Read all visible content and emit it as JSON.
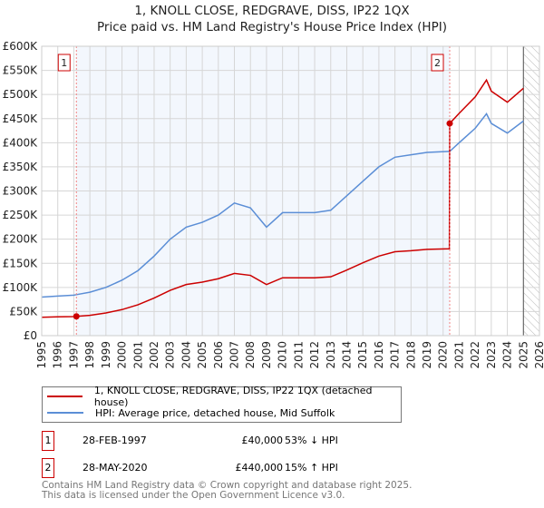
{
  "chart_data": {
    "type": "line",
    "title": "1, KNOLL CLOSE, REDGRAVE, DISS, IP22 1QX",
    "subtitle": "Price paid vs. HM Land Registry's House Price Index (HPI)",
    "xlim": [
      1995,
      2026
    ],
    "ylim": [
      0,
      600000
    ],
    "x_ticks": [
      "1995",
      "1996",
      "1997",
      "1998",
      "1999",
      "2000",
      "2001",
      "2002",
      "2003",
      "2004",
      "2005",
      "2006",
      "2007",
      "2008",
      "2009",
      "2010",
      "2011",
      "2012",
      "2013",
      "2014",
      "2015",
      "2016",
      "2017",
      "2018",
      "2019",
      "2020",
      "2021",
      "2022",
      "2023",
      "2024",
      "2025",
      "2026"
    ],
    "y_ticks": [
      {
        "v": 0,
        "label": "£0"
      },
      {
        "v": 50000,
        "label": "£50K"
      },
      {
        "v": 100000,
        "label": "£100K"
      },
      {
        "v": 150000,
        "label": "£150K"
      },
      {
        "v": 200000,
        "label": "£200K"
      },
      {
        "v": 250000,
        "label": "£250K"
      },
      {
        "v": 300000,
        "label": "£300K"
      },
      {
        "v": 350000,
        "label": "£350K"
      },
      {
        "v": 400000,
        "label": "£400K"
      },
      {
        "v": 450000,
        "label": "£450K"
      },
      {
        "v": 500000,
        "label": "£500K"
      },
      {
        "v": 550000,
        "label": "£550K"
      },
      {
        "v": 600000,
        "label": "£600K"
      }
    ],
    "grid": true,
    "shaded_region": [
      1997.16,
      2020.41
    ],
    "forecast_hatch_from": 2025.0,
    "series": [
      {
        "name": "1, KNOLL CLOSE, REDGRAVE, DISS, IP22 1QX (detached house)",
        "color": "#cc0000",
        "x": [
          1995,
          1996,
          1997,
          1997.16,
          1998,
          1999,
          2000,
          2001,
          2002,
          2003,
          2004,
          2005,
          2006,
          2007,
          2008,
          2009,
          2010,
          2011,
          2012,
          2013,
          2014,
          2015,
          2016,
          2017,
          2018,
          2019,
          2020.39,
          2020.41,
          2021,
          2022,
          2022.7,
          2023,
          2024,
          2025
        ],
        "y": [
          38000,
          39000,
          39500,
          40000,
          42000,
          47000,
          54000,
          64000,
          78000,
          94000,
          106000,
          111000,
          118000,
          129000,
          125000,
          106000,
          120000,
          120000,
          120000,
          122000,
          136000,
          151000,
          165000,
          174000,
          176000,
          179000,
          180000,
          440000,
          461000,
          495000,
          530000,
          507000,
          484000,
          513000
        ]
      },
      {
        "name": "HPI: Average price, detached house, Mid Suffolk",
        "color": "#5b8ed6",
        "x": [
          1995,
          1996,
          1997,
          1997.16,
          1998,
          1999,
          2000,
          2001,
          2002,
          2003,
          2004,
          2005,
          2006,
          2007,
          2008,
          2009,
          2010,
          2011,
          2012,
          2013,
          2014,
          2015,
          2016,
          2017,
          2018,
          2019,
          2020.39,
          2020.41,
          2021,
          2022,
          2022.7,
          2023,
          2024,
          2025
        ],
        "y": [
          80000,
          82000,
          84000,
          85000,
          90000,
          100000,
          115000,
          135000,
          165000,
          200000,
          225000,
          235000,
          250000,
          275000,
          265000,
          225000,
          255000,
          255000,
          255000,
          260000,
          290000,
          320000,
          350000,
          370000,
          375000,
          380000,
          382000,
          382000,
          400000,
          430000,
          460000,
          440000,
          420000,
          445000
        ]
      }
    ],
    "sales": [
      {
        "id": "1",
        "x": 1997.16,
        "y": 40000,
        "date": "28-FEB-1997",
        "price": "£40,000",
        "hpi": "53% ↓ HPI"
      },
      {
        "id": "2",
        "x": 2020.41,
        "y": 440000,
        "date": "28-MAY-2020",
        "price": "£440,000",
        "hpi": "15% ↑ HPI"
      }
    ]
  },
  "footer": {
    "line1": "Contains HM Land Registry data © Crown copyright and database right 2025.",
    "line2": "This data is licensed under the Open Government Licence v3.0."
  }
}
